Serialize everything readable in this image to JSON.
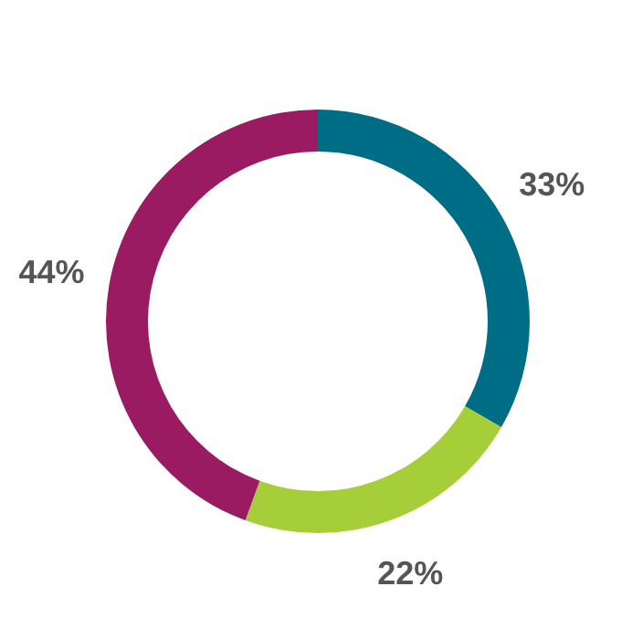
{
  "chart_data": {
    "type": "donut",
    "categories": [
      null,
      null,
      null
    ],
    "values": [
      33,
      22,
      44
    ],
    "colors": [
      "#006d87",
      "#a6ce39",
      "#9b1b63"
    ],
    "value_labels": [
      "33%",
      "22%",
      "44%"
    ]
  }
}
